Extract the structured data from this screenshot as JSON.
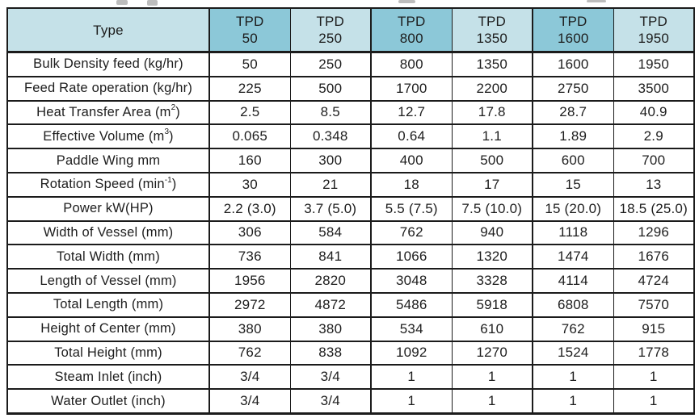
{
  "table": {
    "header": {
      "type_label": "Type",
      "columns": [
        {
          "line1": "TPD",
          "line2": "50",
          "shade": "dark"
        },
        {
          "line1": "TPD",
          "line2": "250",
          "shade": "light"
        },
        {
          "line1": "TPD",
          "line2": "800",
          "shade": "dark"
        },
        {
          "line1": "TPD",
          "line2": "1350",
          "shade": "light"
        },
        {
          "line1": "TPD",
          "line2": "1600",
          "shade": "dark"
        },
        {
          "line1": "TPD",
          "line2": "1950",
          "shade": "light"
        }
      ]
    },
    "rows": [
      {
        "label": [
          {
            "t": "Bulk Density feed (kg/hr)"
          }
        ],
        "values": [
          "50",
          "250",
          "800",
          "1350",
          "1600",
          "1950"
        ]
      },
      {
        "label": [
          {
            "t": "Feed Rate operation (kg/hr)"
          }
        ],
        "values": [
          "225",
          "500",
          "1700",
          "2200",
          "2750",
          "3500"
        ]
      },
      {
        "label": [
          {
            "t": "Heat Transfer Area (m"
          },
          {
            "t": "2",
            "sup": true
          },
          {
            "t": ")"
          }
        ],
        "values": [
          "2.5",
          "8.5",
          "12.7",
          "17.8",
          "28.7",
          "40.9"
        ]
      },
      {
        "label": [
          {
            "t": "Effective Volume (m"
          },
          {
            "t": "3",
            "sup": true
          },
          {
            "t": ")"
          }
        ],
        "values": [
          "0.065",
          "0.348",
          "0.64",
          "1.1",
          "1.89",
          "2.9"
        ]
      },
      {
        "label": [
          {
            "t": "Paddle Wing mm"
          }
        ],
        "values": [
          "160",
          "300",
          "400",
          "500",
          "600",
          "700"
        ]
      },
      {
        "label": [
          {
            "t": "Rotation Speed (min"
          },
          {
            "t": "-1",
            "sup": true
          },
          {
            "t": ")"
          }
        ],
        "values": [
          "30",
          "21",
          "18",
          "17",
          "15",
          "13"
        ]
      },
      {
        "label": [
          {
            "t": "Power kW(HP)"
          }
        ],
        "values": [
          "2.2 (3.0)",
          "3.7 (5.0)",
          "5.5 (7.5)",
          "7.5 (10.0)",
          "15 (20.0)",
          "18.5 (25.0)"
        ]
      },
      {
        "label": [
          {
            "t": "Width of Vessel (mm)"
          }
        ],
        "values": [
          "306",
          "584",
          "762",
          "940",
          "1118",
          "1296"
        ]
      },
      {
        "label": [
          {
            "t": "Total Width (mm)"
          }
        ],
        "values": [
          "736",
          "841",
          "1066",
          "1320",
          "1474",
          "1676"
        ]
      },
      {
        "label": [
          {
            "t": "Length of Vessel (mm)"
          }
        ],
        "values": [
          "1956",
          "2820",
          "3048",
          "3328",
          "4114",
          "4724"
        ]
      },
      {
        "label": [
          {
            "t": "Total Length  (mm)"
          }
        ],
        "values": [
          "2972",
          "4872",
          "5486",
          "5918",
          "6808",
          "7570"
        ]
      },
      {
        "label": [
          {
            "t": "Height of Center (mm)"
          }
        ],
        "values": [
          "380",
          "380",
          "534",
          "610",
          "762",
          "915"
        ]
      },
      {
        "label": [
          {
            "t": "Total Height (mm)"
          }
        ],
        "values": [
          "762",
          "838",
          "1092",
          "1270",
          "1524",
          "1778"
        ]
      },
      {
        "label": [
          {
            "t": "Steam Inlet (inch)"
          }
        ],
        "values": [
          "3/4",
          "3/4",
          "1",
          "1",
          "1",
          "1"
        ]
      },
      {
        "label": [
          {
            "t": "Water Outlet (inch)"
          }
        ],
        "values": [
          "3/4",
          "3/4",
          "1",
          "1",
          "1",
          "1"
        ]
      }
    ]
  },
  "colors": {
    "header_dark": "#8cc8d8",
    "header_light": "#c5e1e8",
    "border": "#1b1b1b",
    "text": "#1d1d1d",
    "background": "#ffffff"
  }
}
